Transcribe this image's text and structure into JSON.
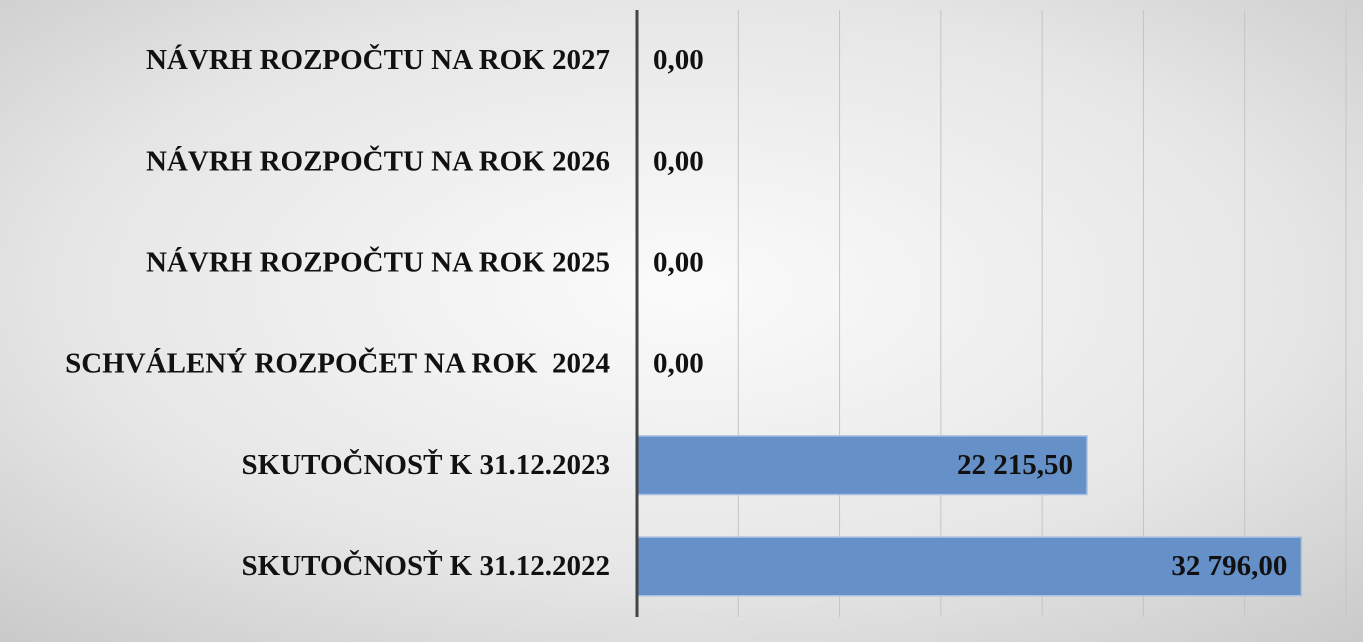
{
  "chart_data": {
    "type": "barh",
    "categories": [
      "NÁVRH ROZPOČTU NA ROK 2027",
      "NÁVRH ROZPOČTU NA ROK 2026",
      "NÁVRH ROZPOČTU NA ROK 2025",
      "SCHVÁLENÝ ROZPOČET NA ROK  2024",
      "SKUTOČNOSŤ K 31.12.2023",
      "SKUTOČNOSŤ K 31.12.2022"
    ],
    "values": [
      0,
      0,
      0,
      0,
      22215.5,
      32796
    ],
    "value_labels": [
      "0,00",
      "0,00",
      "0,00",
      "0,00",
      "22 215,50",
      "32 796,00"
    ],
    "color": "#6690c8",
    "xlim": [
      0,
      35000
    ],
    "xticks": [
      0,
      5000,
      10000,
      15000,
      20000,
      25000,
      30000,
      35000
    ],
    "grid": true
  }
}
